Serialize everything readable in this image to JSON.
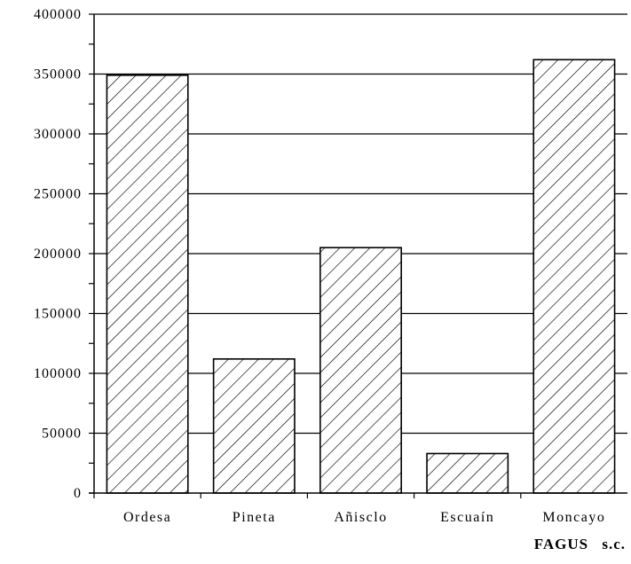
{
  "chart_data": {
    "type": "bar",
    "categories": [
      "Ordesa",
      "Pineta",
      "Añisclo",
      "Escuaín",
      "Moncayo"
    ],
    "values": [
      349000,
      112000,
      205000,
      33000,
      362000
    ],
    "title": "",
    "xlabel": "",
    "ylabel": "",
    "ylim": [
      0,
      400000
    ],
    "yticks": [
      0,
      50000,
      100000,
      150000,
      200000,
      250000,
      300000,
      350000,
      400000
    ],
    "grid": true,
    "bar_fill": "diagonal-hatch",
    "colors": {
      "bar_stroke": "#000000",
      "bar_fill": "#ffffff",
      "hatch": "#000000"
    }
  },
  "credit": "FAGUS s.c."
}
